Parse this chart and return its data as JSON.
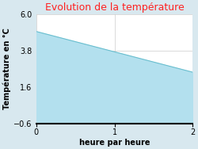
{
  "title": "Evolution de la température",
  "title_color": "#ff2222",
  "xlabel": "heure par heure",
  "ylabel": "Température en °C",
  "x_data": [
    0,
    2
  ],
  "y_data": [
    4.95,
    2.5
  ],
  "fill_color": "#b3e0ee",
  "fill_alpha": 1.0,
  "line_color": "#6bbfcf",
  "line_width": 0.8,
  "xlim": [
    0,
    2
  ],
  "ylim": [
    -0.6,
    6.0
  ],
  "yticks": [
    -0.6,
    1.6,
    3.8,
    6.0
  ],
  "xticks": [
    0,
    1,
    2
  ],
  "background_color": "#d8e8ef",
  "plot_bg_color": "#ffffff",
  "grid_color": "#cccccc",
  "title_fontsize": 9,
  "label_fontsize": 7,
  "tick_fontsize": 7
}
